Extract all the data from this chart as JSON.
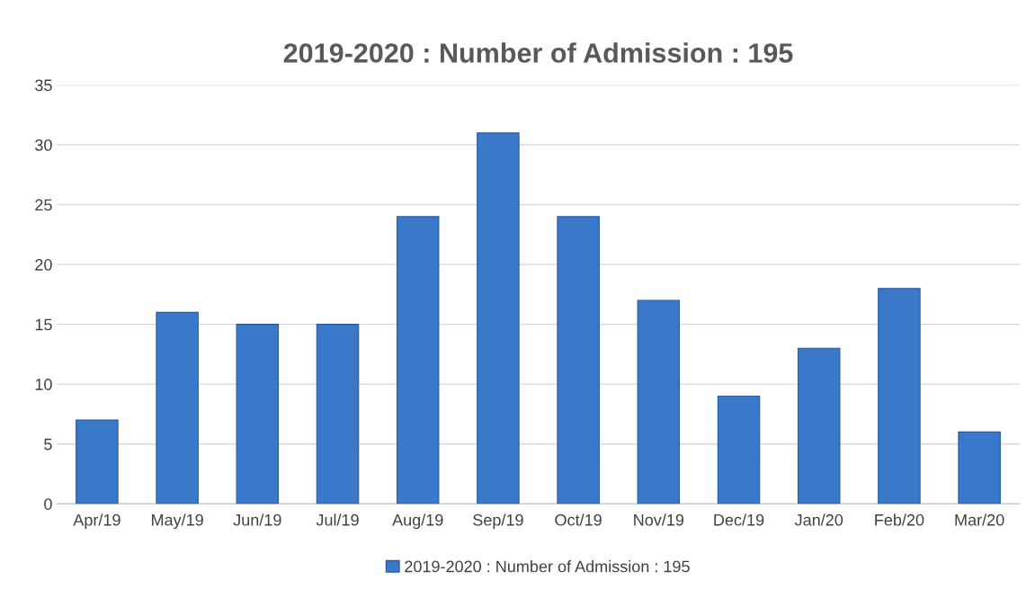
{
  "chart_data": {
    "type": "bar",
    "title": "2019-2020 : Number of Admission : 195",
    "categories": [
      "Apr/19",
      "May/19",
      "Jun/19",
      "Jul/19",
      "Aug/19",
      "Sep/19",
      "Oct/19",
      "Nov/19",
      "Dec/19",
      "Jan/20",
      "Feb/20",
      "Mar/20"
    ],
    "series": [
      {
        "name": "2019-2020 : Number of Admission : 195",
        "color": "#3a78c9",
        "values": [
          7,
          16,
          15,
          15,
          24,
          31,
          24,
          17,
          9,
          13,
          18,
          6
        ]
      }
    ],
    "ylim": [
      0,
      35
    ],
    "yticks": [
      0,
      5,
      10,
      15,
      20,
      25,
      30,
      35
    ],
    "grid": "y",
    "legend": "bottom"
  }
}
